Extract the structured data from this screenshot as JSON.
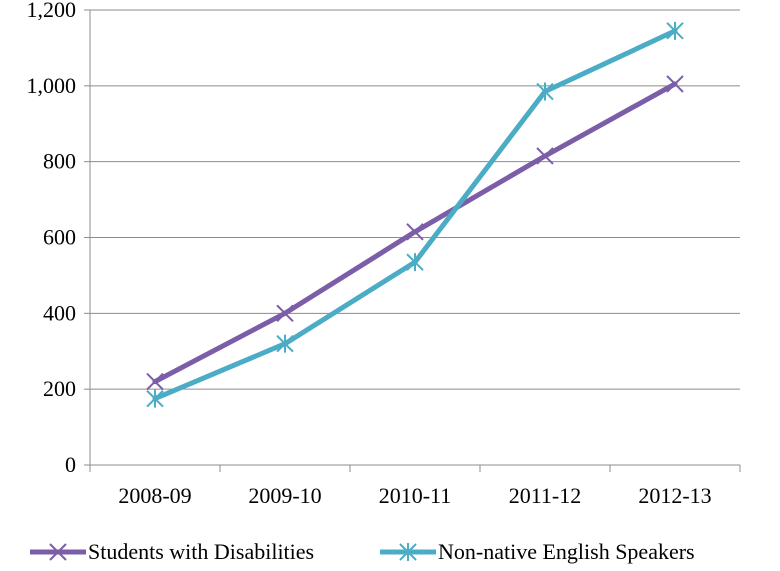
{
  "chart_data": {
    "type": "line",
    "title": "",
    "xlabel": "",
    "ylabel": "",
    "categories": [
      "2008-09",
      "2009-10",
      "2010-11",
      "2011-12",
      "2012-13"
    ],
    "ylim": [
      0,
      1200
    ],
    "yticks": [
      0,
      200,
      400,
      600,
      800,
      1000,
      1200
    ],
    "ytick_labels": [
      "0",
      "200",
      "400",
      "600",
      "800",
      "1,000",
      "1,200"
    ],
    "grid": true,
    "legend_position": "bottom",
    "series": [
      {
        "name": "Students with Disabilities",
        "values": [
          220,
          400,
          615,
          815,
          1005
        ],
        "color": "#7b5ea7",
        "marker": "x"
      },
      {
        "name": "Non-native English Speakers",
        "values": [
          175,
          320,
          535,
          985,
          1145
        ],
        "color": "#4bacc6",
        "marker": "asterisk"
      }
    ]
  }
}
